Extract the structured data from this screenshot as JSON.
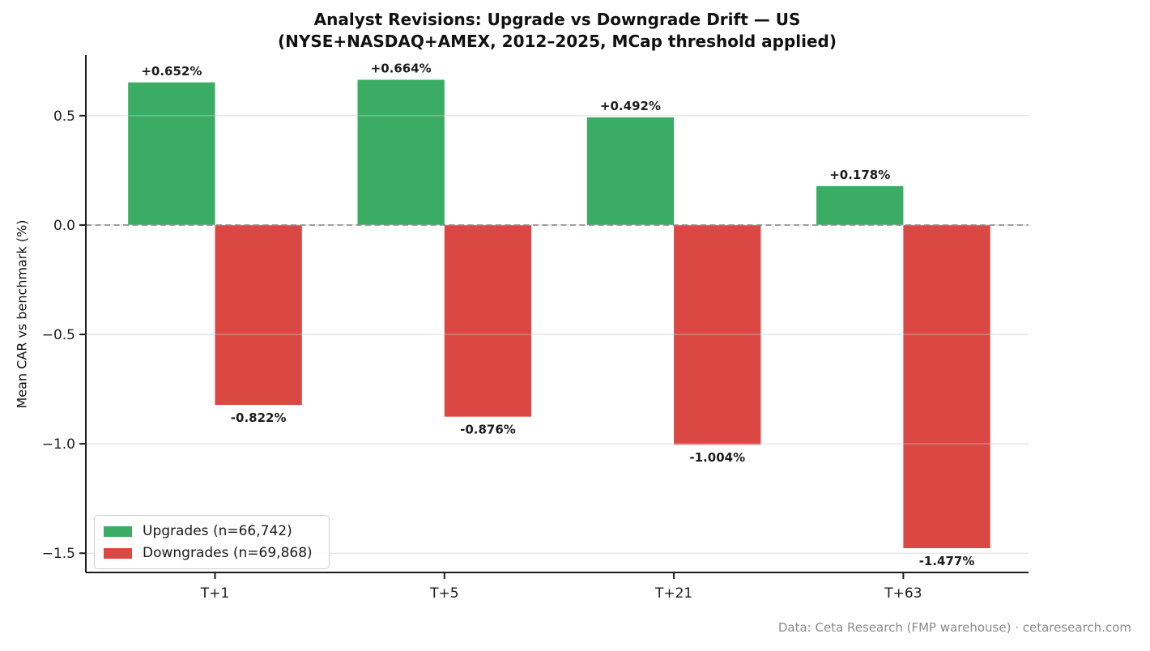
{
  "title": {
    "line1": "Analyst Revisions: Upgrade vs Downgrade Drift — US",
    "line2": "(NYSE+NASDAQ+AMEX, 2012–2025, MCap threshold applied)"
  },
  "footer": {
    "text": "Data: Ceta Research (FMP warehouse) · cetaresearch.com"
  },
  "colors": {
    "upgrade_bar": "#3aac63",
    "downgrade_bar": "#db4743",
    "upgrade_label": "#17a24b",
    "downgrade_label": "#d33030",
    "gridline": "#c9c9c9",
    "zero_line": "#8a8a8a",
    "axis": "#1c1c1c",
    "footer_text": "#8b8b8b"
  },
  "chart_data": {
    "type": "bar",
    "title": "Analyst Revisions: Upgrade vs Downgrade Drift — US (NYSE+NASDAQ+AMEX, 2012–2025, MCap threshold applied)",
    "categories": [
      "T+1",
      "T+5",
      "T+21",
      "T+63"
    ],
    "series": [
      {
        "name": "Upgrades (n=66,742)",
        "values": [
          0.652,
          0.664,
          0.492,
          0.178
        ],
        "labels": [
          "+0.652%",
          "+0.664%",
          "+0.492%",
          "+0.178%"
        ],
        "color": "#3aac63",
        "label_color": "#17a24b"
      },
      {
        "name": "Downgrades (n=69,868)",
        "values": [
          -0.822,
          -0.876,
          -1.004,
          -1.477
        ],
        "labels": [
          "-0.822%",
          "-0.876%",
          "-1.004%",
          "-1.477%"
        ],
        "color": "#db4743",
        "label_color": "#d33030"
      }
    ],
    "xlabel": "",
    "ylabel": "Mean CAR vs benchmark (%)",
    "yticks": [
      0.5,
      0.0,
      -0.5,
      -1.0,
      -1.5
    ],
    "ytick_labels": [
      "0.5",
      "0.0",
      "−0.5",
      "−1.0",
      "−1.5"
    ],
    "ylim": [
      -1.588,
      0.777
    ],
    "grid": true,
    "zero_line_style": "dashed",
    "legend_position": "lower-left"
  }
}
